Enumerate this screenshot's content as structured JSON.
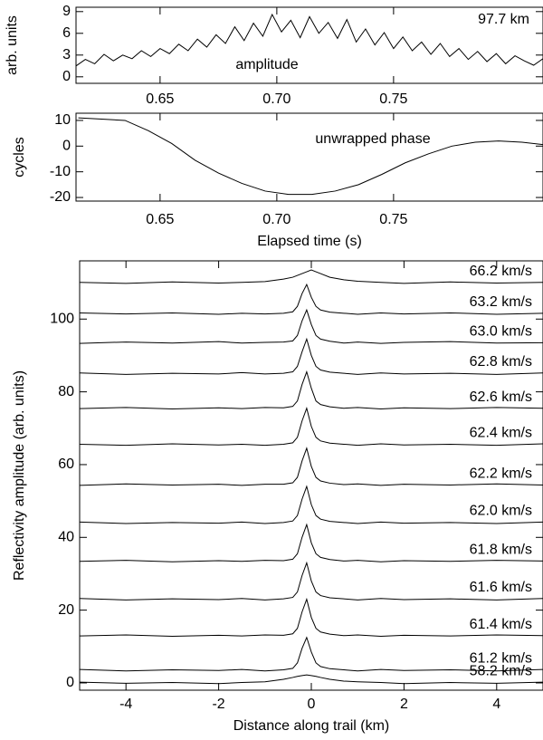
{
  "chart_data": [
    {
      "type": "line",
      "y_label": "arb. units",
      "annotations": [
        "97.7 km",
        "amplitude"
      ],
      "x": [
        0.614,
        0.618,
        0.622,
        0.626,
        0.63,
        0.634,
        0.638,
        0.642,
        0.646,
        0.65,
        0.654,
        0.658,
        0.662,
        0.666,
        0.67,
        0.674,
        0.678,
        0.682,
        0.686,
        0.69,
        0.694,
        0.698,
        0.702,
        0.706,
        0.71,
        0.714,
        0.718,
        0.722,
        0.726,
        0.73,
        0.734,
        0.738,
        0.742,
        0.746,
        0.75,
        0.754,
        0.758,
        0.762,
        0.766,
        0.77,
        0.774,
        0.778,
        0.782,
        0.786,
        0.79,
        0.794,
        0.798,
        0.802,
        0.806,
        0.81,
        0.814
      ],
      "series": [
        {
          "color": "#000000",
          "values": [
            1.5,
            2.4,
            1.8,
            3.1,
            2.2,
            3.0,
            2.5,
            3.6,
            2.8,
            3.9,
            3.2,
            4.5,
            3.6,
            5.2,
            4.1,
            5.8,
            4.6,
            6.9,
            5.0,
            7.4,
            5.6,
            8.6,
            6.2,
            7.8,
            5.4,
            8.3,
            6.0,
            7.5,
            5.3,
            7.9,
            4.8,
            6.6,
            4.4,
            6.1,
            3.9,
            5.5,
            3.6,
            4.8,
            3.1,
            4.6,
            2.8,
            3.9,
            2.4,
            3.5,
            2.1,
            3.2,
            1.8,
            2.9,
            2.2,
            1.6,
            2.5
          ]
        }
      ],
      "xlim": [
        0.614,
        0.814
      ],
      "xticks": [
        {
          "value": 0.65,
          "label": "0.65"
        },
        {
          "value": 0.7,
          "label": "0.70"
        },
        {
          "value": 0.75,
          "label": "0.75"
        }
      ],
      "ylim": [
        -0.9,
        9.6
      ],
      "yticks": [
        0,
        3,
        6,
        9
      ],
      "grid": false
    },
    {
      "type": "line",
      "x_label": "Elapsed time (s)",
      "y_label": "cycles",
      "annotations": [
        "unwrapped phase"
      ],
      "x": [
        0.615,
        0.625,
        0.635,
        0.645,
        0.655,
        0.665,
        0.675,
        0.685,
        0.695,
        0.705,
        0.715,
        0.725,
        0.735,
        0.745,
        0.755,
        0.765,
        0.775,
        0.785,
        0.795,
        0.805,
        0.815
      ],
      "series": [
        {
          "color": "#000000",
          "values": [
            11,
            10.5,
            10,
            6,
            1,
            -5.5,
            -10.5,
            -14.5,
            -17.5,
            -18.8,
            -18.8,
            -17.5,
            -15,
            -11,
            -6.5,
            -3,
            0,
            1.5,
            2,
            1.5,
            0.5
          ]
        }
      ],
      "xlim": [
        0.614,
        0.814
      ],
      "xticks": [
        {
          "value": 0.65,
          "label": "0.65"
        },
        {
          "value": 0.7,
          "label": "0.70"
        },
        {
          "value": 0.75,
          "label": "0.75"
        }
      ],
      "ylim": [
        -21.4,
        12.8
      ],
      "yticks": [
        10,
        0,
        -10,
        -20
      ],
      "grid": false
    },
    {
      "type": "line",
      "x_label": "Distance along trail (km)",
      "y_label": "Reflectivity amplitude (arb. units)",
      "x": [
        -5,
        -4,
        -3,
        -2,
        -1.5,
        -1,
        -0.6,
        -0.4,
        -0.3,
        -0.2,
        -0.1,
        0,
        0.1,
        0.2,
        0.4,
        0.7,
        1,
        1.5,
        2,
        3,
        4,
        5
      ],
      "series": [
        {
          "name": "66.2 km/s",
          "color": "#000000",
          "values": [
            110.1,
            109.8,
            110.2,
            109.9,
            110.1,
            110.3,
            111,
            111.5,
            112,
            112.5,
            113,
            113.5,
            113,
            112.5,
            111.5,
            110.8,
            110.4,
            110.1,
            109.8,
            110.2,
            109.9,
            110.1
          ]
        },
        {
          "name": "63.2 km/s",
          "color": "#000000",
          "values": [
            101.7,
            101.4,
            101.7,
            101.3,
            101.6,
            101.4,
            101.6,
            102,
            103.5,
            107,
            109.5,
            106,
            103.5,
            102.5,
            101.9,
            101.6,
            101.3,
            101.7,
            101.4,
            101.7,
            101.3,
            101.6
          ]
        },
        {
          "name": "63.0 km/s",
          "color": "#000000",
          "values": [
            93.3,
            93.7,
            93.4,
            93.8,
            93.4,
            93.6,
            93.7,
            94,
            95.5,
            99.5,
            102.5,
            98.5,
            95.5,
            94.5,
            93.9,
            93.4,
            93.7,
            93.3,
            93.6,
            93.8,
            93.4,
            93.5
          ]
        },
        {
          "name": "62.8 km/s",
          "color": "#000000",
          "values": [
            85.2,
            84.8,
            85.1,
            84.9,
            85.3,
            84.9,
            85.1,
            85.5,
            87,
            91,
            94.5,
            90,
            87,
            86,
            85.4,
            85.1,
            84.8,
            85.2,
            84.9,
            85.1,
            84.8,
            85.2
          ]
        },
        {
          "name": "62.6 km/s",
          "color": "#000000",
          "values": [
            75.4,
            75.7,
            75.3,
            75.6,
            75.4,
            75.7,
            75.6,
            76,
            77.5,
            82,
            85.5,
            81,
            77.5,
            76.5,
            75.9,
            75.5,
            75.7,
            75.3,
            75.6,
            75.4,
            75.7,
            75.5
          ]
        },
        {
          "name": "62.4 km/s",
          "color": "#000000",
          "values": [
            65.6,
            65.3,
            65.7,
            65.4,
            65.6,
            65.3,
            65.6,
            66,
            67.5,
            72,
            75.5,
            70.5,
            67.5,
            66.5,
            65.9,
            65.6,
            65.3,
            65.7,
            65.4,
            65.6,
            65.3,
            65.7
          ]
        },
        {
          "name": "62.2 km/s",
          "color": "#000000",
          "values": [
            54.3,
            54.7,
            54.4,
            54.6,
            54.3,
            54.6,
            54.6,
            55,
            56.5,
            61,
            64.5,
            59.5,
            56.5,
            55.5,
            54.9,
            54.5,
            54.7,
            54.3,
            54.6,
            54.4,
            54.7,
            54.4
          ]
        },
        {
          "name": "62.0 km/s",
          "color": "#000000",
          "values": [
            44.2,
            43.8,
            44.1,
            43.9,
            44.2,
            43.8,
            44.1,
            44.5,
            46,
            50.5,
            54,
            49,
            46,
            45,
            44.4,
            44.1,
            43.8,
            44.2,
            43.9,
            44.1,
            43.8,
            44.2
          ]
        },
        {
          "name": "61.8 km/s",
          "color": "#000000",
          "values": [
            33.4,
            33.7,
            33.3,
            33.6,
            33.4,
            33.7,
            33.6,
            34,
            35.5,
            40,
            43.5,
            38.5,
            35.5,
            34.5,
            33.9,
            33.5,
            33.7,
            33.3,
            33.6,
            33.4,
            33.7,
            33.5
          ]
        },
        {
          "name": "61.6 km/s",
          "color": "#000000",
          "values": [
            23.2,
            22.8,
            23.1,
            22.9,
            23.2,
            22.8,
            23.1,
            23.5,
            25,
            29.5,
            33,
            28,
            25,
            24,
            23.4,
            23.1,
            22.8,
            23.2,
            22.9,
            23.1,
            22.8,
            23.2
          ]
        },
        {
          "name": "61.4 km/s",
          "color": "#000000",
          "values": [
            12.9,
            13.2,
            12.8,
            13.1,
            12.9,
            13.2,
            13.1,
            13.5,
            15,
            19.5,
            23,
            18,
            15,
            14,
            13.4,
            13,
            13.2,
            12.8,
            13.1,
            12.9,
            13.2,
            13
          ]
        },
        {
          "name": "61.2 km/s",
          "color": "#000000",
          "values": [
            3.7,
            3.3,
            3.6,
            3.4,
            3.7,
            3.3,
            3.6,
            4,
            5.5,
            9.5,
            12.5,
            8.5,
            5.5,
            4.5,
            3.9,
            3.6,
            3.3,
            3.7,
            3.4,
            3.6,
            3.3,
            3.7
          ]
        },
        {
          "name": "58.2 km/s",
          "color": "#000000",
          "values": [
            0.2,
            -0.1,
            0.1,
            -0.2,
            0.1,
            0.3,
            1,
            1.5,
            1.8,
            2,
            2.2,
            2,
            1.8,
            1.5,
            1,
            0.5,
            0.3,
            0.1,
            -0.2,
            0.1,
            -0.1,
            0.2
          ]
        }
      ],
      "xlim": [
        -5,
        5
      ],
      "xticks": [
        -4,
        -2,
        0,
        2,
        4
      ],
      "ylim": [
        -2,
        116
      ],
      "yticks": [
        0,
        20,
        40,
        60,
        80,
        100
      ],
      "grid": false
    }
  ]
}
